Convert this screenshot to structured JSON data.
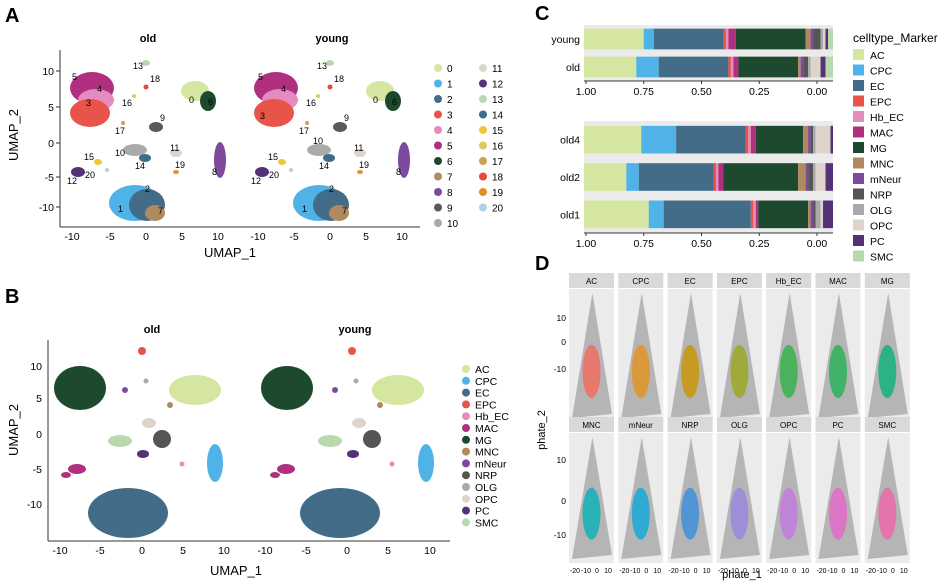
{
  "panels": {
    "a": "A",
    "b": "B",
    "c": "C",
    "d": "D"
  },
  "panel_a": {
    "facets": [
      "old",
      "young"
    ],
    "xlabel": "UMAP_1",
    "ylabel": "UMAP_2",
    "xticks": [
      -10,
      -5,
      0,
      5,
      10
    ],
    "yticks": [
      10,
      5,
      0,
      -5,
      -10
    ],
    "legend": [
      "0",
      "1",
      "2",
      "3",
      "4",
      "5",
      "6",
      "7",
      "8",
      "9",
      "10",
      "11",
      "12",
      "13",
      "14",
      "15",
      "16",
      "17",
      "18",
      "19",
      "20"
    ]
  },
  "panel_b": {
    "facets": [
      "old",
      "young"
    ],
    "xlabel": "UMAP_1",
    "ylabel": "UMAP_2",
    "xticks": [
      -10,
      -5,
      0,
      5,
      10
    ],
    "yticks": [
      10,
      5,
      0,
      -5,
      -10
    ],
    "legend": [
      "AC",
      "CPC",
      "EC",
      "EPC",
      "Hb_EC",
      "MAC",
      "MG",
      "MNC",
      "mNeur",
      "NRP",
      "OLG",
      "OPC",
      "PC",
      "SMC"
    ]
  },
  "panel_c": {
    "legend_title": "celltype_Marker"
  },
  "panel_d": {
    "xlabel": "phate_1",
    "ylabel": "phate_2",
    "facets": [
      "AC",
      "CPC",
      "EC",
      "EPC",
      "Hb_EC",
      "MAC",
      "MG",
      "MNC",
      "mNeur",
      "NRP",
      "OLG",
      "OPC",
      "PC",
      "SMC"
    ],
    "yticks": [
      10,
      0,
      -10
    ],
    "xticks": [
      "-20",
      "-10",
      "0",
      "10"
    ]
  },
  "colors": {
    "clusters": [
      "#d4e6a0",
      "#4fb3e8",
      "#436c89",
      "#e8534a",
      "#e48cc0",
      "#b0307f",
      "#1d4a2e",
      "#b08a5e",
      "#7e4a9e",
      "#5a5a5a",
      "#aaaaaa",
      "#ddd5cb",
      "#553178",
      "#b8d9ae",
      "#3e6c89",
      "#f0c63a",
      "#dccb64",
      "#c8a152",
      "#e54b3b",
      "#de8f27",
      "#aed1e6"
    ],
    "celltypes": [
      "#d4e6a0",
      "#4fb3e8",
      "#436c89",
      "#e8534a",
      "#e48cc0",
      "#b0307f",
      "#1d4a2e",
      "#b08a5e",
      "#7e4a9e",
      "#555555",
      "#aaaaaa",
      "#ddd5cb",
      "#553178",
      "#b8d9ae"
    ],
    "phate": [
      "#ee6d61",
      "#e09424",
      "#c9960a",
      "#9ba825",
      "#37b24d",
      "#2db35a",
      "#14b27a",
      "#11b3b8",
      "#17a8d8",
      "#3f8fdb",
      "#9a86dd",
      "#c27cdc",
      "#e06bc8",
      "#ea6aa8"
    ]
  },
  "chart_data": [
    {
      "type": "bar",
      "orientation": "horizontal",
      "title": "",
      "categories": [
        "young",
        "old"
      ],
      "xlim": [
        1,
        0
      ],
      "xticks": [
        "1.00",
        "0.75",
        "0.50",
        "0.25",
        "0.00"
      ],
      "series": [
        {
          "name": "AC",
          "values": [
            0.24,
            0.21
          ]
        },
        {
          "name": "CPC",
          "values": [
            0.04,
            0.09
          ]
        },
        {
          "name": "EC",
          "values": [
            0.28,
            0.28
          ]
        },
        {
          "name": "EPC",
          "values": [
            0.01,
            0.01
          ]
        },
        {
          "name": "Hb_EC",
          "values": [
            0.01,
            0.01
          ]
        },
        {
          "name": "MAC",
          "values": [
            0.03,
            0.02
          ]
        },
        {
          "name": "MG",
          "values": [
            0.28,
            0.24
          ]
        },
        {
          "name": "MNC",
          "values": [
            0.02,
            0.01
          ]
        },
        {
          "name": "mNeur",
          "values": [
            0.01,
            0.01
          ]
        },
        {
          "name": "NRP",
          "values": [
            0.03,
            0.02
          ]
        },
        {
          "name": "OLG",
          "values": [
            0.01,
            0.01
          ]
        },
        {
          "name": "OPC",
          "values": [
            0.01,
            0.04
          ]
        },
        {
          "name": "PC",
          "values": [
            0.01,
            0.02
          ]
        },
        {
          "name": "SMC",
          "values": [
            0.02,
            0.03
          ]
        }
      ]
    },
    {
      "type": "bar",
      "orientation": "horizontal",
      "title": "",
      "categories": [
        "old4",
        "old2",
        "old1"
      ],
      "xlim": [
        1,
        0
      ],
      "xticks": [
        "1.00",
        "0.75",
        "0.50",
        "0.25",
        "0.00"
      ],
      "series": [
        {
          "name": "AC",
          "values": [
            0.23,
            0.17,
            0.26
          ]
        },
        {
          "name": "CPC",
          "values": [
            0.14,
            0.05,
            0.06
          ]
        },
        {
          "name": "EC",
          "values": [
            0.28,
            0.3,
            0.35
          ]
        },
        {
          "name": "EPC",
          "values": [
            0.01,
            0.01,
            0.01
          ]
        },
        {
          "name": "Hb_EC",
          "values": [
            0.01,
            0.01,
            0.01
          ]
        },
        {
          "name": "MAC",
          "values": [
            0.02,
            0.02,
            0.01
          ]
        },
        {
          "name": "MG",
          "values": [
            0.19,
            0.3,
            0.2
          ]
        },
        {
          "name": "MNC",
          "values": [
            0.02,
            0.03,
            0.01
          ]
        },
        {
          "name": "mNeur",
          "values": [
            0.01,
            0.01,
            0.01
          ]
        },
        {
          "name": "NRP",
          "values": [
            0.01,
            0.02,
            0.01
          ]
        },
        {
          "name": "OLG",
          "values": [
            0.01,
            0.01,
            0.02
          ]
        },
        {
          "name": "OPC",
          "values": [
            0.06,
            0.04,
            0.01
          ]
        },
        {
          "name": "PC",
          "values": [
            0.01,
            0.03,
            0.04
          ]
        },
        {
          "name": "SMC",
          "values": [
            0.0,
            0.0,
            0.0
          ]
        }
      ]
    }
  ]
}
